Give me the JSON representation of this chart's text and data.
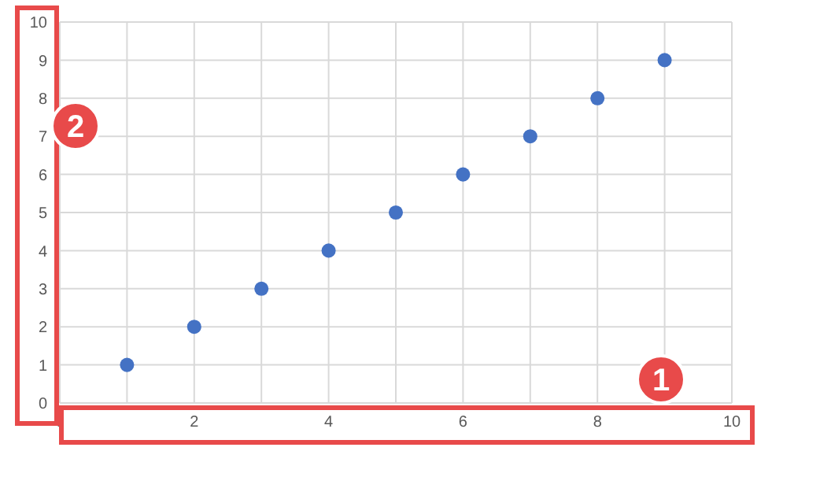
{
  "chart_data": {
    "type": "scatter",
    "x": [
      1,
      2,
      3,
      4,
      5,
      6,
      7,
      8,
      9
    ],
    "series": [
      {
        "color": "#4472c4",
        "values": [
          1,
          2,
          3,
          4,
          5,
          6,
          7,
          8,
          9
        ]
      }
    ],
    "xlim": [
      0,
      10
    ],
    "xticks": [
      0,
      {
        "value": 1,
        "label": null
      },
      2,
      {
        "value": 3,
        "label": null
      },
      4,
      {
        "value": 5,
        "label": null
      },
      6,
      {
        "value": 7,
        "label": null
      },
      8,
      {
        "value": 9,
        "label": null
      },
      10
    ],
    "ylim": [
      0,
      10
    ],
    "yticks": [
      0,
      1,
      2,
      3,
      4,
      5,
      6,
      7,
      8,
      9,
      10
    ],
    "grid": true,
    "marker": "circle",
    "annotations": [
      "1",
      "2"
    ]
  }
}
